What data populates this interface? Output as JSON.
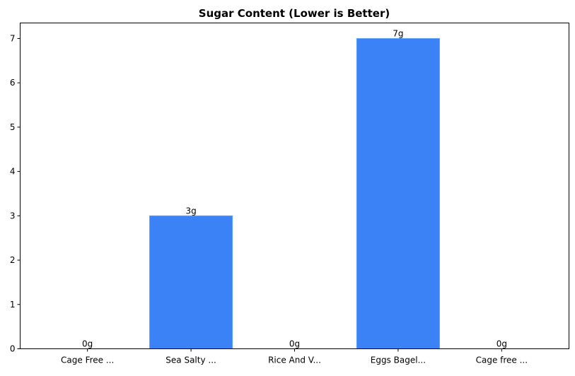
{
  "chart_data": {
    "type": "bar",
    "title": "Sugar Content (Lower is Better)",
    "xlabel": "",
    "ylabel": "",
    "categories": [
      "Cage Free ...",
      "Sea Salty ...",
      "Rice And V...",
      "Eggs Bagel...",
      "Cage free ..."
    ],
    "values": [
      0,
      3,
      0,
      7,
      0
    ],
    "data_labels": [
      "0g",
      "3g",
      "0g",
      "7g",
      "0g"
    ],
    "ylim": [
      0,
      7.35
    ],
    "yticks": [
      0,
      1,
      2,
      3,
      4,
      5,
      6,
      7
    ],
    "grid": false,
    "bar_color": "#3b82f6"
  }
}
